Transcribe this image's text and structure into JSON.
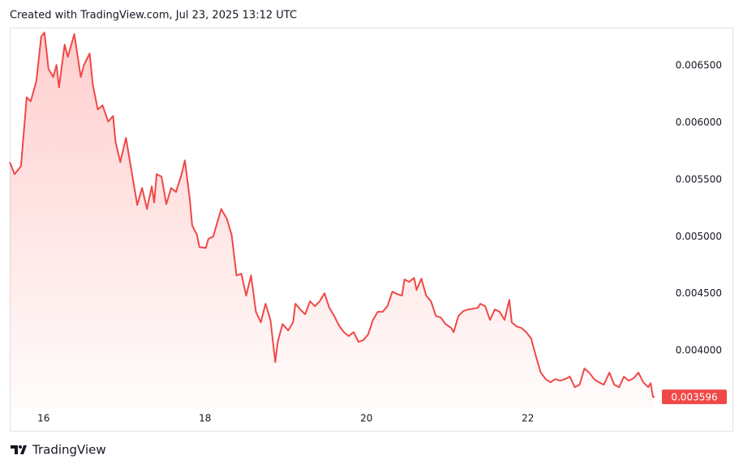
{
  "header": "Created with TradingView.com, Jul 23, 2025 13:12 UTC",
  "brand": "TradingView",
  "chart_data": {
    "type": "area",
    "color": "#f04848",
    "x": [
      15.58,
      15.64,
      15.72,
      15.79,
      15.84,
      15.91,
      15.97,
      16.01,
      16.06,
      16.12,
      16.16,
      16.19,
      16.26,
      16.3,
      16.38,
      16.46,
      16.5,
      16.57,
      16.61,
      16.67,
      16.73,
      16.8,
      16.86,
      16.89,
      16.95,
      17.02,
      17.07,
      17.13,
      17.16,
      17.22,
      17.28,
      17.34,
      17.37,
      17.4,
      17.46,
      17.52,
      17.58,
      17.64,
      17.71,
      17.75,
      17.81,
      17.84,
      17.9,
      17.93,
      18.01,
      18.04,
      18.1,
      18.2,
      18.27,
      18.33,
      18.39,
      18.45,
      18.51,
      18.57,
      18.63,
      18.69,
      18.75,
      18.81,
      18.87,
      18.9,
      18.96,
      19.03,
      19.09,
      19.12,
      19.18,
      19.24,
      19.3,
      19.36,
      19.42,
      19.48,
      19.54,
      19.6,
      19.66,
      19.72,
      19.78,
      19.84,
      19.9,
      19.96,
      20.02,
      20.08,
      20.14,
      20.2,
      20.26,
      20.32,
      20.38,
      20.44,
      20.47,
      20.53,
      20.59,
      20.62,
      20.68,
      20.74,
      20.8,
      20.86,
      20.92,
      20.98,
      21.05,
      21.08,
      21.14,
      21.2,
      21.26,
      21.32,
      21.38,
      21.41,
      21.47,
      21.53,
      21.59,
      21.65,
      21.71,
      21.77,
      21.8,
      21.86,
      21.92,
      21.98,
      22.04,
      22.1,
      22.16,
      22.22,
      22.28,
      22.34,
      22.4,
      22.46,
      22.52,
      22.58,
      22.64,
      22.7,
      22.76,
      22.82,
      22.88,
      22.94,
      23.01,
      23.07,
      23.13,
      23.19,
      23.25,
      23.31,
      23.37,
      23.43,
      23.49,
      23.52,
      23.55,
      23.57
    ],
    "values": [
      0.005654,
      0.005548,
      0.005619,
      0.006222,
      0.006187,
      0.006364,
      0.006755,
      0.00679,
      0.006471,
      0.0064,
      0.006506,
      0.006308,
      0.006684,
      0.006577,
      0.006776,
      0.0064,
      0.006506,
      0.006606,
      0.006329,
      0.006116,
      0.006151,
      0.006009,
      0.006059,
      0.005832,
      0.005654,
      0.005867,
      0.005654,
      0.005406,
      0.005278,
      0.005427,
      0.005243,
      0.005441,
      0.005299,
      0.005548,
      0.005527,
      0.005285,
      0.005427,
      0.005392,
      0.005548,
      0.005669,
      0.005335,
      0.0051,
      0.005015,
      0.004909,
      0.004902,
      0.00498,
      0.005001,
      0.005243,
      0.005157,
      0.005015,
      0.00466,
      0.004675,
      0.004483,
      0.00466,
      0.004341,
      0.004249,
      0.004412,
      0.00427,
      0.003901,
      0.004078,
      0.004234,
      0.004178,
      0.004249,
      0.004412,
      0.004362,
      0.00432,
      0.004433,
      0.004391,
      0.004433,
      0.004504,
      0.004376,
      0.004305,
      0.00422,
      0.004163,
      0.004128,
      0.004163,
      0.004078,
      0.004092,
      0.004142,
      0.00427,
      0.004341,
      0.004341,
      0.004391,
      0.004518,
      0.004497,
      0.004483,
      0.004625,
      0.004604,
      0.004639,
      0.004533,
      0.004632,
      0.004483,
      0.004433,
      0.004305,
      0.004291,
      0.004234,
      0.004199,
      0.004163,
      0.004305,
      0.004348,
      0.004362,
      0.004369,
      0.004376,
      0.004412,
      0.004391,
      0.00427,
      0.004362,
      0.004341,
      0.00427,
      0.004447,
      0.004249,
      0.004213,
      0.004199,
      0.004163,
      0.004107,
      0.00395,
      0.003808,
      0.003751,
      0.003723,
      0.003751,
      0.003737,
      0.003751,
      0.003773,
      0.00368,
      0.003702,
      0.003844,
      0.003808,
      0.003751,
      0.003723,
      0.003702,
      0.003808,
      0.003702,
      0.00368,
      0.003773,
      0.003737,
      0.003759,
      0.003808,
      0.003723,
      0.00368,
      0.003716,
      0.003595,
      0.003596
    ],
    "xlim": [
      15.58,
      23.65
    ],
    "xticks": [
      16,
      18,
      20,
      22
    ],
    "ylim": [
      0.00349,
      0.006827
    ],
    "yticks": [
      {
        "value": 0.004,
        "label": "0.004000"
      },
      {
        "value": 0.0045,
        "label": "0.004500"
      },
      {
        "value": 0.005,
        "label": "0.005000"
      },
      {
        "value": 0.0055,
        "label": "0.005500"
      },
      {
        "value": 0.006,
        "label": "0.006000"
      },
      {
        "value": 0.0065,
        "label": "0.006500"
      }
    ],
    "grid": false
  }
}
